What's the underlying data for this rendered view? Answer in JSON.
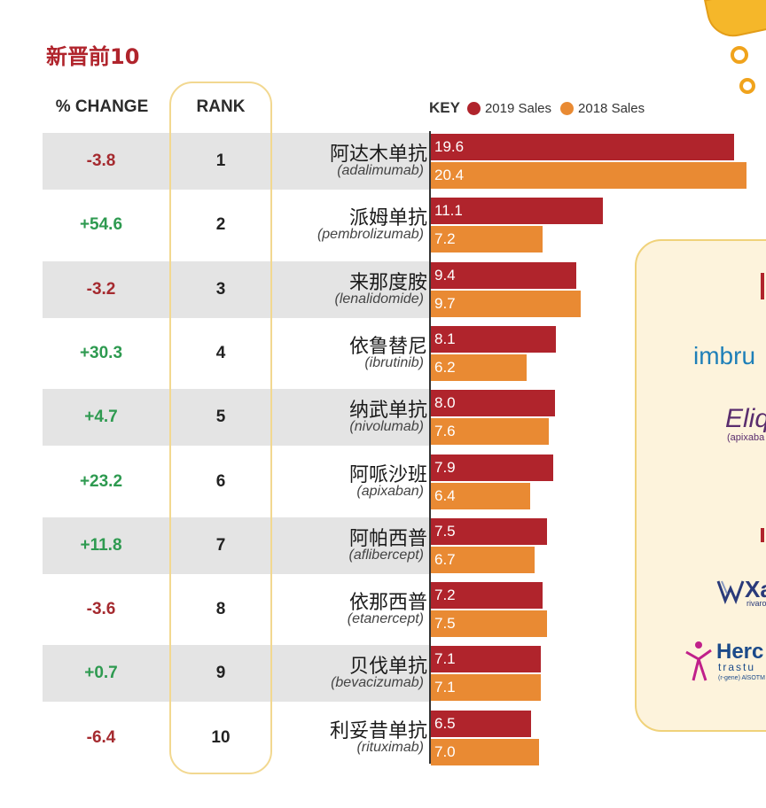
{
  "title": "新晋前10",
  "headers": {
    "change": "% CHANGE",
    "rank": "RANK"
  },
  "key": {
    "label": "KEY",
    "item_2019": "2019 Sales",
    "item_2018": "2018 Sales"
  },
  "colors": {
    "sales_2019": "#b0242c",
    "sales_2018": "#e98a33",
    "negative": "#a52a2f",
    "positive": "#2e9a50",
    "accent": "#f2d890"
  },
  "rows": [
    {
      "change": "-3.8",
      "rank": "1",
      "name_cn": "阿达木单抗",
      "name_en": "(adalimumab)",
      "v2019": "19.6",
      "v2018": "20.4"
    },
    {
      "change": "+54.6",
      "rank": "2",
      "name_cn": "派姆单抗",
      "name_en": "(pembrolizumab)",
      "v2019": "11.1",
      "v2018": "7.2"
    },
    {
      "change": "-3.2",
      "rank": "3",
      "name_cn": "来那度胺",
      "name_en": "(lenalidomide)",
      "v2019": "9.4",
      "v2018": "9.7"
    },
    {
      "change": "+30.3",
      "rank": "4",
      "name_cn": "依鲁替尼",
      "name_en": "(ibrutinib)",
      "v2019": "8.1",
      "v2018": "6.2"
    },
    {
      "change": "+4.7",
      "rank": "5",
      "name_cn": "纳武单抗",
      "name_en": "(nivolumab)",
      "v2019": "8.0",
      "v2018": "7.6"
    },
    {
      "change": "+23.2",
      "rank": "6",
      "name_cn": "阿哌沙班",
      "name_en": "(apixaban)",
      "v2019": "7.9",
      "v2018": "6.4"
    },
    {
      "change": "+11.8",
      "rank": "7",
      "name_cn": "阿帕西普",
      "name_en": "(aflibercept)",
      "v2019": "7.5",
      "v2018": "6.7"
    },
    {
      "change": "-3.6",
      "rank": "8",
      "name_cn": "依那西普",
      "name_en": "(etanercept)",
      "v2019": "7.2",
      "v2018": "7.5"
    },
    {
      "change": "+0.7",
      "rank": "9",
      "name_cn": "贝伐单抗",
      "name_en": "(bevacizumab)",
      "v2019": "7.1",
      "v2018": "7.1"
    },
    {
      "change": "-6.4",
      "rank": "10",
      "name_cn": "利妥昔单抗",
      "name_en": "(rituximab)",
      "v2019": "6.5",
      "v2018": "7.0"
    }
  ],
  "brands": {
    "imbru": "imbru",
    "eliq": "Eliq",
    "eliq_sub": "(apixaba",
    "xa": "Xa",
    "xa_sub": "rivaro",
    "herc": "Herc",
    "herc_sub": "trastu",
    "herc_sub2": "(r-gene) AlSOTM"
  },
  "chart_data": {
    "type": "bar",
    "orientation": "horizontal",
    "title": "新晋前10",
    "categories": [
      "阿达木单抗",
      "派姆单抗",
      "来那度胺",
      "依鲁替尼",
      "纳武单抗",
      "阿哌沙班",
      "阿帕西普",
      "依那西普",
      "贝伐单抗",
      "利妥昔单抗"
    ],
    "series": [
      {
        "name": "2019 Sales",
        "values": [
          19.6,
          11.1,
          9.4,
          8.1,
          8.0,
          7.9,
          7.5,
          7.2,
          7.1,
          6.5
        ]
      },
      {
        "name": "2018 Sales",
        "values": [
          20.4,
          7.2,
          9.7,
          6.2,
          7.6,
          6.4,
          6.7,
          7.5,
          7.1,
          7.0
        ]
      }
    ],
    "percent_change": [
      -3.8,
      54.6,
      -3.2,
      30.3,
      4.7,
      23.2,
      11.8,
      -3.6,
      0.7,
      -6.4
    ],
    "xlim": [
      0,
      20.4
    ],
    "grid": false,
    "legend": "top"
  }
}
